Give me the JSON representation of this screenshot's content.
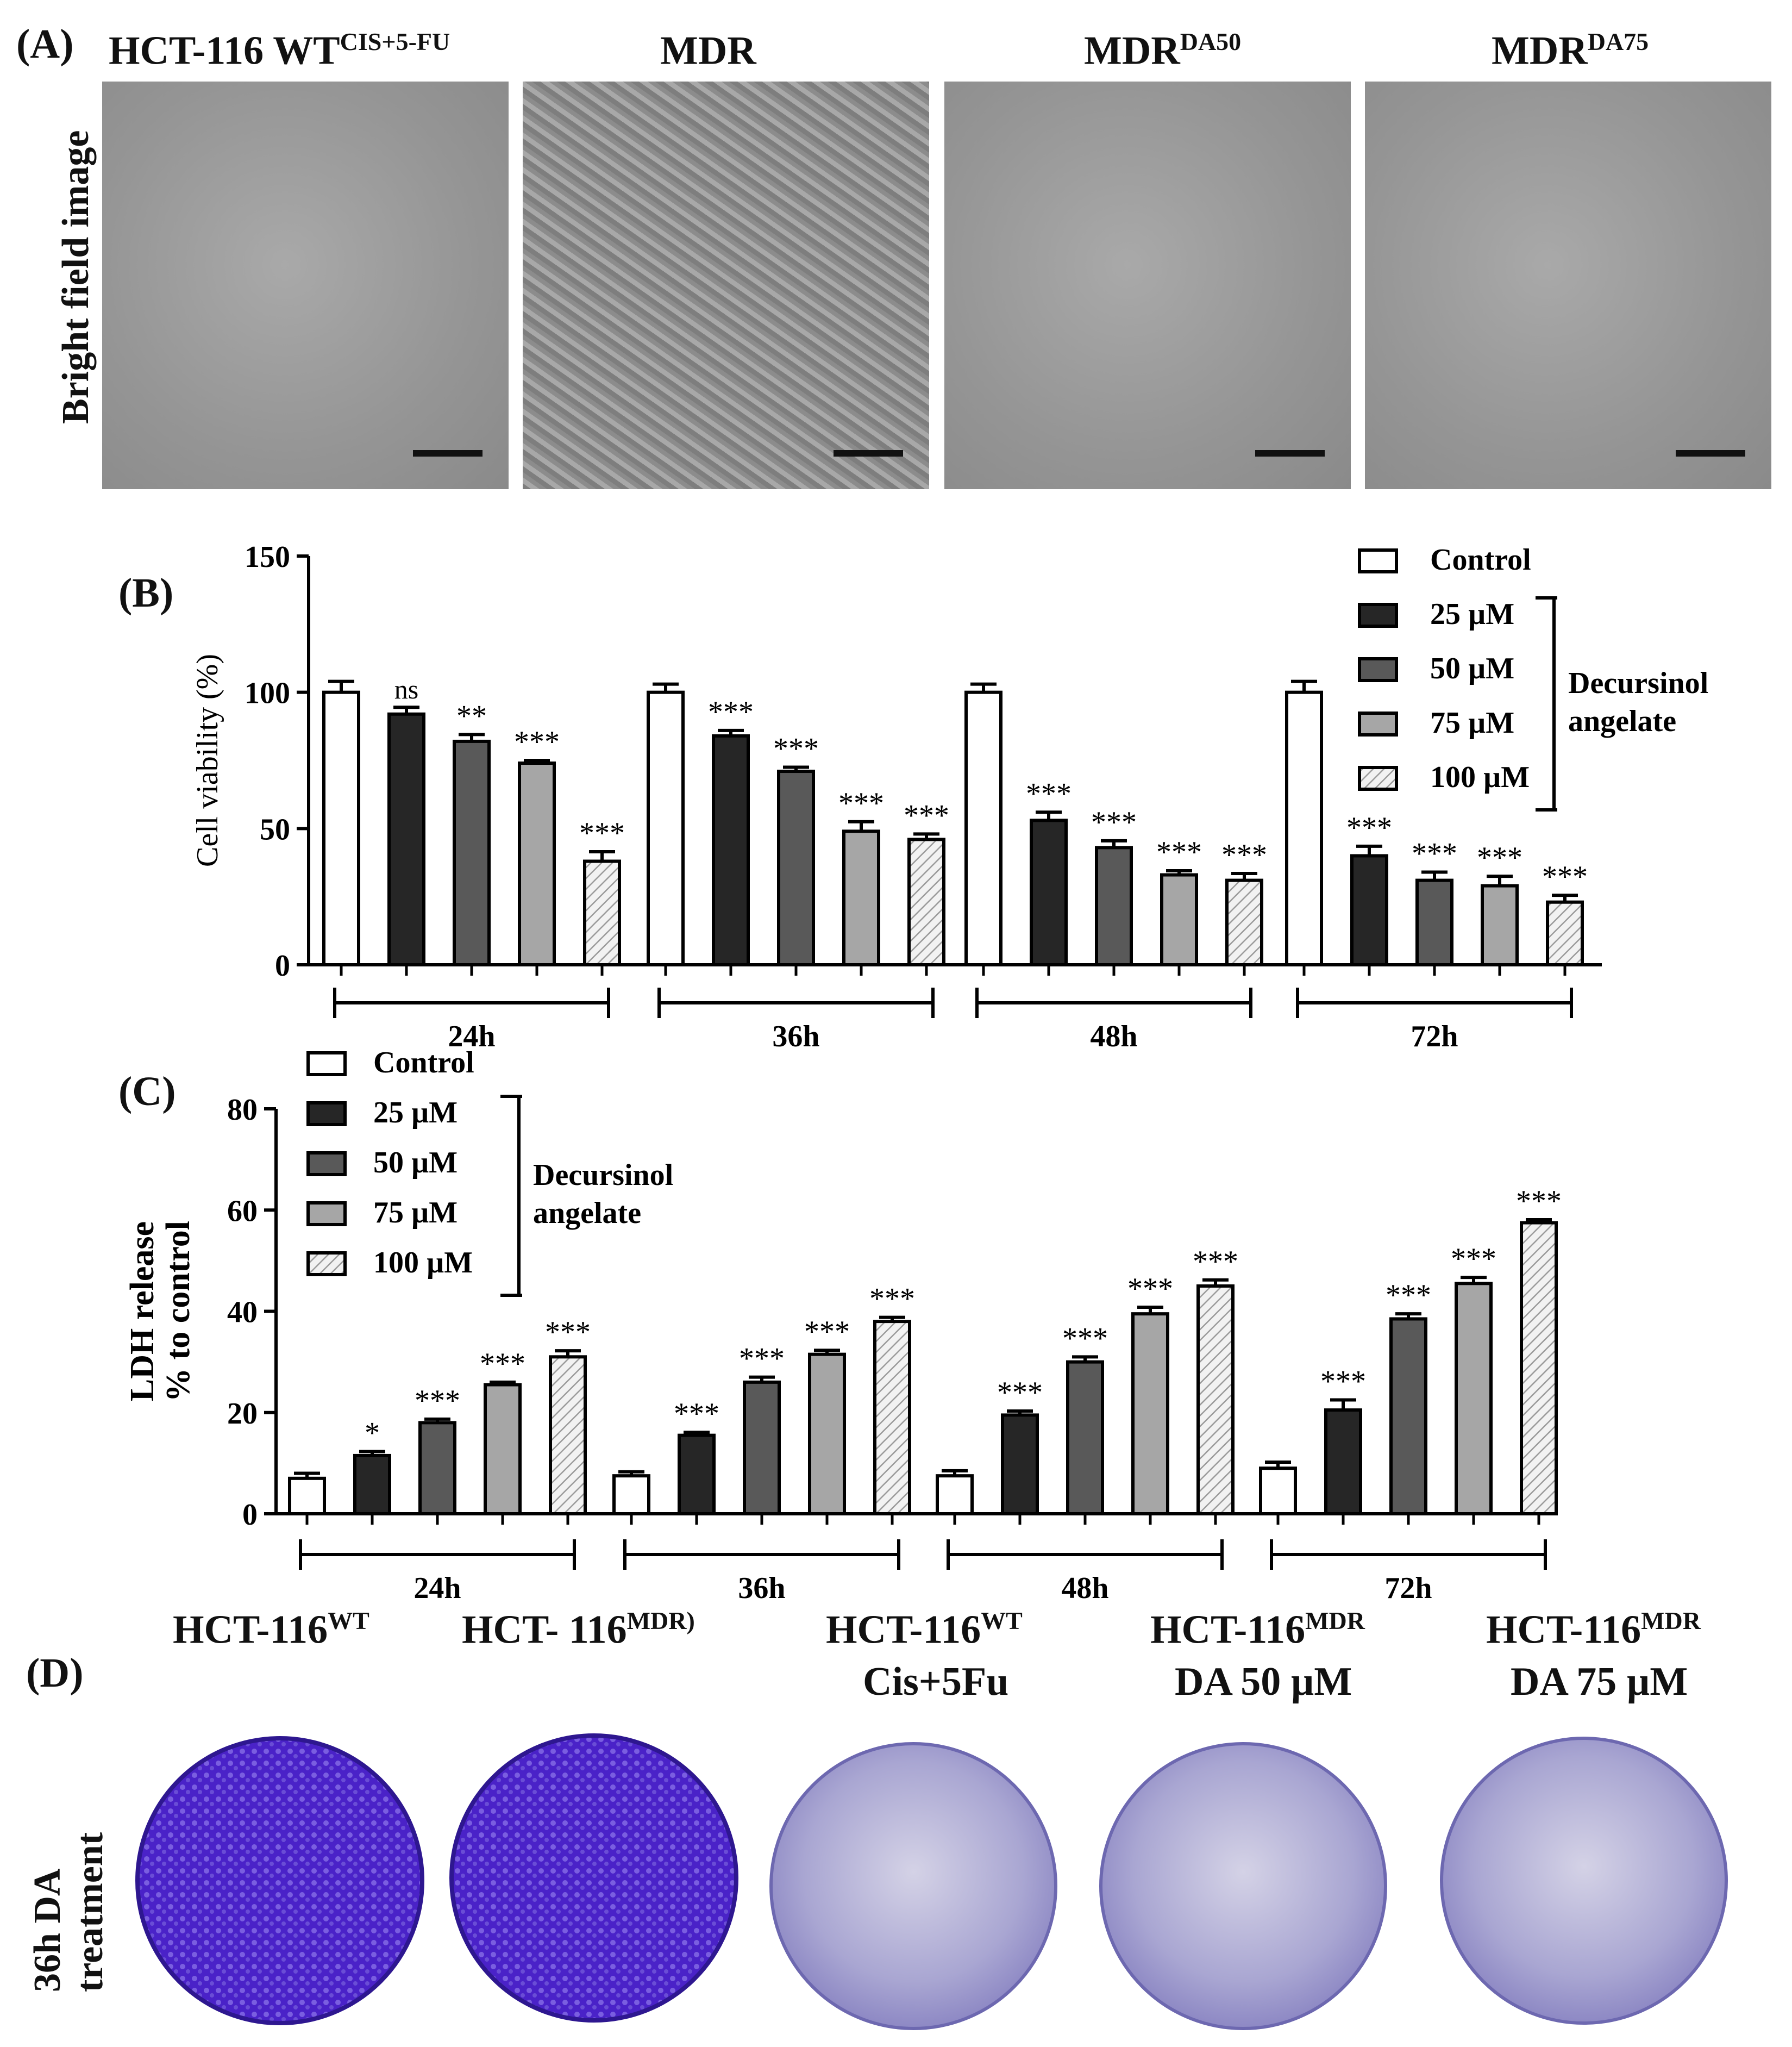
{
  "colors": {
    "control": "#ffffff",
    "dose25": "#262626",
    "dose50": "#595959",
    "dose75": "#a6a6a6",
    "dose100": "#eeeeee",
    "stain_dark": "#4a22c8",
    "stain_light": "#a9a6d2"
  },
  "panel_A": {
    "letter": "(A)",
    "row_label": "Bright field image",
    "images": [
      {
        "base": "HCT-116 WT",
        "sup": "CIS+5-FU"
      },
      {
        "base": "MDR",
        "sup": ""
      },
      {
        "base": "MDR",
        "sup": "DA50"
      },
      {
        "base": "MDR",
        "sup": "DA75"
      }
    ]
  },
  "panel_D": {
    "letter": "(D)",
    "row_label_1": "36h DA",
    "row_label_2": "treatment",
    "plates": [
      {
        "line1_base": "HCT-116",
        "line1_sup": "WT",
        "line2": ""
      },
      {
        "line1_base": "HCT- 116",
        "line1_sup": "MDR)",
        "line2": ""
      },
      {
        "line1_base": "HCT-116",
        "line1_sup": "WT",
        "line2": "Cis+5Fu"
      },
      {
        "line1_base": "HCT-116",
        "line1_sup": "MDR",
        "line2": "DA 50 µM"
      },
      {
        "line1_base": "HCT-116",
        "line1_sup": "MDR",
        "line2": "DA 75 µM"
      }
    ]
  },
  "chart_data": [
    {
      "panel": "(B)",
      "type": "bar",
      "ylabel": "Cell viability (%)",
      "ylim": [
        0,
        150
      ],
      "yticks": [
        0,
        50,
        100,
        150
      ],
      "groups": [
        "24h",
        "36h",
        "48h",
        "72h"
      ],
      "series": [
        {
          "name": "Control",
          "values": [
            100,
            100,
            100,
            100
          ],
          "errors": [
            4,
            3,
            3,
            4
          ],
          "sig": [
            "",
            "",
            "",
            ""
          ]
        },
        {
          "name": "25 µM",
          "values": [
            92,
            84,
            53,
            40
          ],
          "errors": [
            2.5,
            2,
            3,
            3.5
          ],
          "sig": [
            "ns",
            "***",
            "***",
            "***"
          ]
        },
        {
          "name": "50 µM",
          "values": [
            82,
            71,
            43,
            31
          ],
          "errors": [
            2.5,
            1.5,
            2.5,
            3
          ],
          "sig": [
            "**",
            "***",
            "***",
            "***"
          ]
        },
        {
          "name": "75 µM",
          "values": [
            74,
            49,
            33,
            29
          ],
          "errors": [
            1,
            3.5,
            1.5,
            3.5
          ],
          "sig": [
            "***",
            "***",
            "***",
            "***"
          ]
        },
        {
          "name": "100 µM",
          "values": [
            38,
            46,
            31,
            23
          ],
          "errors": [
            3.5,
            2,
            2.5,
            2.5
          ],
          "sig": [
            "***",
            "***",
            "***",
            "***"
          ]
        }
      ],
      "legend_bracket_line1": "Decursinol",
      "legend_bracket_line2": "angelate",
      "legend_position": "top-right"
    },
    {
      "panel": "(C)",
      "type": "bar",
      "ylabel_line1": "LDH release",
      "ylabel_line2": "% to control",
      "ylim": [
        0,
        80
      ],
      "yticks": [
        0,
        20,
        40,
        60,
        80
      ],
      "groups": [
        "24h",
        "36h",
        "48h",
        "72h"
      ],
      "series": [
        {
          "name": "Control",
          "values": [
            7,
            7.5,
            7.5,
            9
          ],
          "errors": [
            1,
            0.8,
            1,
            1.2
          ],
          "sig": [
            "",
            "",
            "",
            ""
          ]
        },
        {
          "name": "25 µM",
          "values": [
            11.5,
            15.5,
            19.5,
            20.5
          ],
          "errors": [
            0.8,
            0.6,
            0.8,
            2
          ],
          "sig": [
            "*",
            "***",
            "***",
            "***"
          ]
        },
        {
          "name": "50 µM",
          "values": [
            18,
            26,
            30,
            38.5
          ],
          "errors": [
            0.7,
            1,
            1,
            1
          ],
          "sig": [
            "***",
            "***",
            "***",
            "***"
          ]
        },
        {
          "name": "75 µM",
          "values": [
            25.5,
            31.5,
            39.5,
            45.5
          ],
          "errors": [
            0.5,
            0.8,
            1.3,
            1.2
          ],
          "sig": [
            "***",
            "***",
            "***",
            "***"
          ]
        },
        {
          "name": "100 µM",
          "values": [
            31,
            38,
            45,
            57.5
          ],
          "errors": [
            1.2,
            0.8,
            1.2,
            0.6
          ],
          "sig": [
            "***",
            "***",
            "***",
            "***"
          ]
        }
      ],
      "legend_bracket_line1": "Decursinol",
      "legend_bracket_line2": "angelate",
      "legend_position": "top-left"
    }
  ]
}
